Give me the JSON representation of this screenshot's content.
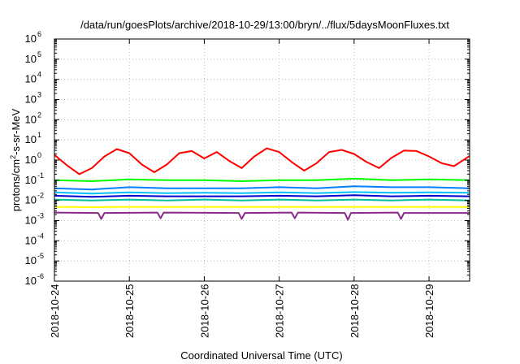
{
  "chart_data": {
    "type": "line",
    "title": "/data/run/goesPlots/archive/2018-10-29/13:00/bryn/../flux/5daysMoonFluxes.txt",
    "xlabel": "Coordinated Universal Time (UTC)",
    "ylabel": "protons/cm2-s-sr-MeV",
    "ylabel_parts": {
      "pre": "protons/cm",
      "sup": "2",
      "post": "-s-sr-MeV"
    },
    "yscale": "log",
    "ylim_exp": [
      -6,
      6
    ],
    "y_tick_exponents": [
      6,
      5,
      4,
      3,
      2,
      1,
      0,
      -1,
      -2,
      -3,
      -4,
      -5,
      -6
    ],
    "xlim": [
      "2018-10-24",
      "2018-10-29T13:00"
    ],
    "x_ticks": [
      "2018-10-24",
      "2018-10-25",
      "2018-10-26",
      "2018-10-27",
      "2018-10-28",
      "2018-10-29"
    ],
    "grid": true,
    "series": [
      {
        "color": "#ff0000",
        "x": [
          "2018-10-24T00:00",
          "2018-10-24T04:00",
          "2018-10-24T08:00",
          "2018-10-24T12:00",
          "2018-10-24T16:00",
          "2018-10-24T20:00",
          "2018-10-25T00:00",
          "2018-10-25T04:00",
          "2018-10-25T08:00",
          "2018-10-25T12:00",
          "2018-10-25T16:00",
          "2018-10-25T20:00",
          "2018-10-26T00:00",
          "2018-10-26T04:00",
          "2018-10-26T08:00",
          "2018-10-26T12:00",
          "2018-10-26T16:00",
          "2018-10-26T20:00",
          "2018-10-27T00:00",
          "2018-10-27T04:00",
          "2018-10-27T08:00",
          "2018-10-27T12:00",
          "2018-10-27T16:00",
          "2018-10-27T20:00",
          "2018-10-28T00:00",
          "2018-10-28T04:00",
          "2018-10-28T08:00",
          "2018-10-28T12:00",
          "2018-10-28T16:00",
          "2018-10-28T20:00",
          "2018-10-29T00:00",
          "2018-10-29T04:00",
          "2018-10-29T08:00",
          "2018-10-29T13:00"
        ],
        "y": [
          1.8,
          0.55,
          0.2,
          0.4,
          1.5,
          3.5,
          2.2,
          0.6,
          0.25,
          0.6,
          2.2,
          2.8,
          1.2,
          2.5,
          0.9,
          0.4,
          1.5,
          3.8,
          2.5,
          0.8,
          0.3,
          0.7,
          2.5,
          3.2,
          2.0,
          0.8,
          0.4,
          1.3,
          3.0,
          2.8,
          1.5,
          0.7,
          0.5,
          1.6
        ]
      },
      {
        "color": "#00ff00",
        "x": [
          "2018-10-24T00:00",
          "2018-10-24T12:00",
          "2018-10-25T00:00",
          "2018-10-25T12:00",
          "2018-10-26T00:00",
          "2018-10-26T12:00",
          "2018-10-27T00:00",
          "2018-10-27T12:00",
          "2018-10-28T00:00",
          "2018-10-28T12:00",
          "2018-10-29T00:00",
          "2018-10-29T13:00"
        ],
        "y": [
          0.1,
          0.09,
          0.11,
          0.1,
          0.1,
          0.09,
          0.1,
          0.1,
          0.12,
          0.1,
          0.11,
          0.1
        ]
      },
      {
        "color": "#0080ff",
        "x": [
          "2018-10-24T00:00",
          "2018-10-24T12:00",
          "2018-10-25T00:00",
          "2018-10-25T12:00",
          "2018-10-26T00:00",
          "2018-10-26T12:00",
          "2018-10-27T00:00",
          "2018-10-27T12:00",
          "2018-10-28T00:00",
          "2018-10-28T12:00",
          "2018-10-29T00:00",
          "2018-10-29T13:00"
        ],
        "y": [
          0.04,
          0.035,
          0.045,
          0.04,
          0.04,
          0.04,
          0.045,
          0.04,
          0.05,
          0.045,
          0.045,
          0.04
        ]
      },
      {
        "color": "#00bfff",
        "x": [
          "2018-10-24T00:00",
          "2018-10-24T12:00",
          "2018-10-25T00:00",
          "2018-10-25T12:00",
          "2018-10-26T00:00",
          "2018-10-26T12:00",
          "2018-10-27T00:00",
          "2018-10-27T12:00",
          "2018-10-28T00:00",
          "2018-10-28T12:00",
          "2018-10-29T00:00",
          "2018-10-29T13:00"
        ],
        "y": [
          0.025,
          0.022,
          0.025,
          0.023,
          0.024,
          0.023,
          0.025,
          0.023,
          0.026,
          0.024,
          0.025,
          0.024
        ]
      },
      {
        "color": "#0000cc",
        "x": [
          "2018-10-24T00:00",
          "2018-10-24T12:00",
          "2018-10-25T00:00",
          "2018-10-25T12:00",
          "2018-10-26T00:00",
          "2018-10-26T12:00",
          "2018-10-27T00:00",
          "2018-10-27T12:00",
          "2018-10-28T00:00",
          "2018-10-28T12:00",
          "2018-10-29T00:00",
          "2018-10-29T13:00"
        ],
        "y": [
          0.017,
          0.015,
          0.017,
          0.016,
          0.016,
          0.016,
          0.017,
          0.016,
          0.018,
          0.016,
          0.017,
          0.016
        ]
      },
      {
        "color": "#00c0a0",
        "x": [
          "2018-10-24T00:00",
          "2018-10-24T12:00",
          "2018-10-25T00:00",
          "2018-10-25T12:00",
          "2018-10-26T00:00",
          "2018-10-26T12:00",
          "2018-10-27T00:00",
          "2018-10-27T12:00",
          "2018-10-28T00:00",
          "2018-10-28T12:00",
          "2018-10-29T00:00",
          "2018-10-29T13:00"
        ],
        "y": [
          0.011,
          0.01,
          0.011,
          0.01,
          0.011,
          0.01,
          0.011,
          0.01,
          0.011,
          0.01,
          0.011,
          0.01
        ]
      },
      {
        "color": "#ffff00",
        "x": [
          "2018-10-24T00:00",
          "2018-10-24T12:00",
          "2018-10-25T00:00",
          "2018-10-25T12:00",
          "2018-10-26T00:00",
          "2018-10-26T12:00",
          "2018-10-27T00:00",
          "2018-10-27T12:00",
          "2018-10-28T00:00",
          "2018-10-28T12:00",
          "2018-10-29T00:00",
          "2018-10-29T13:00"
        ],
        "y": [
          0.0048,
          0.0046,
          0.0048,
          0.0047,
          0.0048,
          0.0047,
          0.0048,
          0.0047,
          0.0048,
          0.0047,
          0.0048,
          0.0047
        ]
      },
      {
        "color": "#8b2a8b",
        "x": [
          "2018-10-24T00:00",
          "2018-10-24T14:00",
          "2018-10-24T15:00",
          "2018-10-24T16:00",
          "2018-10-25T09:00",
          "2018-10-25T10:00",
          "2018-10-25T11:00",
          "2018-10-26T11:00",
          "2018-10-26T12:00",
          "2018-10-26T13:00",
          "2018-10-27T04:00",
          "2018-10-27T05:00",
          "2018-10-27T06:00",
          "2018-10-27T21:00",
          "2018-10-27T22:00",
          "2018-10-27T23:00",
          "2018-10-28T14:00",
          "2018-10-28T15:00",
          "2018-10-28T16:00",
          "2018-10-29T13:00"
        ],
        "y": [
          0.0025,
          0.0024,
          0.0012,
          0.0024,
          0.0025,
          0.0013,
          0.0025,
          0.0024,
          0.0012,
          0.0024,
          0.0025,
          0.0013,
          0.0025,
          0.0024,
          0.0011,
          0.0024,
          0.0025,
          0.0012,
          0.0024,
          0.0024
        ]
      }
    ]
  }
}
